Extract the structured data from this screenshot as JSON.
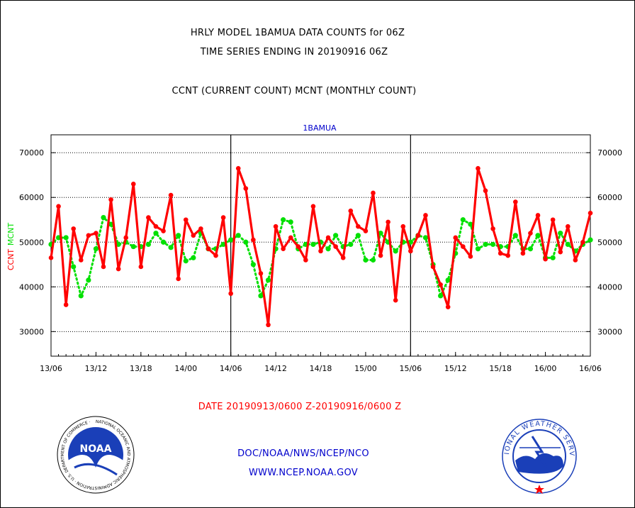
{
  "header": {
    "title_line1": "HRLY MODEL 1BAMUA DATA COUNTS for 06Z",
    "title_line2": "TIME SERIES ENDING IN 20190916 06Z",
    "subtitle": "CCNT (CURRENT COUNT) MCNT (MONTHLY COUNT)"
  },
  "footer": {
    "date_range": "DATE 20190913/0600 Z-20190916/0600 Z",
    "org_line": "DOC/NOAA/NWS/NCEP/NCO",
    "url_line": "WWW.NCEP.NOAA.GOV"
  },
  "logos": {
    "noaa_text": "NOAA",
    "noaa_ring_text": "NATIONAL OCEANIC AND ATMOSPHERIC ADMINISTRATION · U.S. DEPARTMENT OF COMMERCE ·",
    "nws_ring_text": "NATIONAL WEATHER SERVICE"
  },
  "colors": {
    "ccnt": "#ff0000",
    "mcnt": "#00e000",
    "panel_label": "#0000cc",
    "footer_date": "#ff0000",
    "footer_org": "#0000cc"
  },
  "chart_data": {
    "type": "line",
    "panel_label": "1BAMUA",
    "ylabel_ccnt": "CCNT",
    "ylabel_mcnt": "MCNT",
    "xlabel": "",
    "x_start": "13/06",
    "x_end": "16/06",
    "xlim_hours": [
      0,
      72
    ],
    "ylim": [
      24500,
      74000
    ],
    "y_ticks": [
      30000,
      40000,
      50000,
      60000,
      70000
    ],
    "y_tick_labels": [
      "30000",
      "40000",
      "50000",
      "60000",
      "70000"
    ],
    "x_ticks": [
      "13/06",
      "13/12",
      "13/18",
      "14/00",
      "14/06",
      "14/12",
      "14/18",
      "15/00",
      "15/06",
      "15/12",
      "15/18",
      "16/00",
      "16/06"
    ],
    "grid": true,
    "day_dividers": [
      "14/06",
      "15/06"
    ],
    "series": [
      {
        "name": "CCNT",
        "values": [
          46500,
          58000,
          36000,
          53000,
          46000,
          51500,
          52000,
          44500,
          59500,
          44000,
          51000,
          63000,
          44500,
          55500,
          53500,
          52500,
          60500,
          41800,
          55000,
          51500,
          53000,
          48500,
          47000,
          55500,
          38500,
          66500,
          62000,
          50500,
          43000,
          31500,
          53500,
          48500,
          51000,
          49000,
          46000,
          58000,
          48000,
          51000,
          49000,
          46500,
          57000,
          53500,
          52500,
          61000,
          47000,
          54500,
          37000,
          53500,
          48000,
          51500,
          56000,
          44500,
          40500,
          35500,
          51000,
          49000,
          46800,
          66500,
          61500,
          53000,
          47500,
          47000,
          59000,
          47500,
          52000,
          56000,
          46200,
          55000,
          47800,
          53500,
          46000,
          50000,
          56500
        ]
      },
      {
        "name": "MCNT",
        "values": [
          49500,
          51000,
          51000,
          44500,
          38000,
          41500,
          48500,
          55500,
          54000,
          49500,
          50000,
          49000,
          49000,
          49500,
          52000,
          50000,
          48800,
          51500,
          45800,
          46500,
          52000,
          48500,
          48500,
          49500,
          50500,
          51500,
          50000,
          45000,
          38000,
          41500,
          48500,
          55000,
          54500,
          48500,
          49500,
          49500,
          50000,
          48500,
          51500,
          49000,
          49500,
          51500,
          46000,
          46000,
          52000,
          50000,
          48000,
          50000,
          50000,
          51500,
          51000,
          45000,
          38000,
          41500,
          47500,
          55000,
          54000,
          48500,
          49500,
          49500,
          49000,
          49000,
          51500,
          48500,
          48500,
          51500,
          46500,
          46500,
          52000,
          49500,
          48000,
          49500,
          50500
        ]
      }
    ]
  }
}
